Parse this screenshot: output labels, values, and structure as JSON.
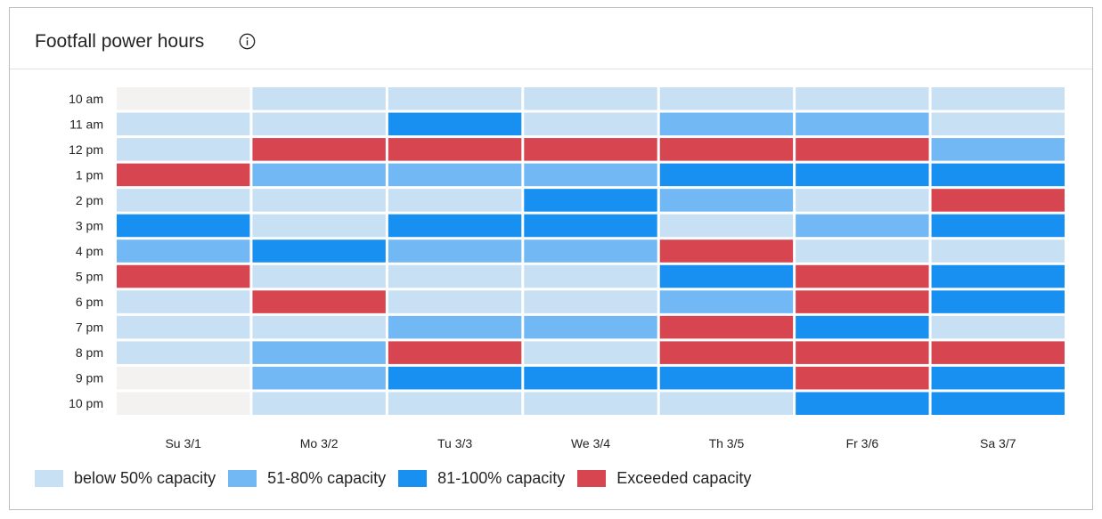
{
  "header": {
    "title": "Footfall power hours",
    "info_icon": "info-circle-icon"
  },
  "colors": {
    "below50": "#c7e0f4",
    "c51_80": "#71b8f5",
    "c81_100": "#1890f1",
    "exceeded": "#d64550",
    "none": "#f3f2f1"
  },
  "legend": [
    {
      "key": "below50",
      "label": "below 50% capacity"
    },
    {
      "key": "c51_80",
      "label": "51-80% capacity"
    },
    {
      "key": "c81_100",
      "label": "81-100% capacity"
    },
    {
      "key": "exceeded",
      "label": "Exceeded capacity"
    }
  ],
  "chart_data": {
    "type": "heatmap",
    "title": "Footfall power hours",
    "x": [
      "Su 3/1",
      "Mo 3/2",
      "Tu 3/3",
      "We 3/4",
      "Th 3/5",
      "Fr 3/6",
      "Sa 3/7"
    ],
    "y": [
      "10 am",
      "11 am",
      "12 pm",
      "1 pm",
      "2 pm",
      "3 pm",
      "4 pm",
      "5 pm",
      "6 pm",
      "7 pm",
      "8 pm",
      "9 pm",
      "10 pm"
    ],
    "categories_legend": [
      "below 50% capacity",
      "51-80% capacity",
      "81-100% capacity",
      "Exceeded capacity"
    ],
    "values": [
      [
        "none",
        "below50",
        "below50",
        "below50",
        "below50",
        "below50",
        "below50"
      ],
      [
        "below50",
        "below50",
        "c81_100",
        "below50",
        "c51_80",
        "c51_80",
        "below50"
      ],
      [
        "below50",
        "exceeded",
        "exceeded",
        "exceeded",
        "exceeded",
        "exceeded",
        "c51_80"
      ],
      [
        "exceeded",
        "c51_80",
        "c51_80",
        "c51_80",
        "c81_100",
        "c81_100",
        "c81_100"
      ],
      [
        "below50",
        "below50",
        "below50",
        "c81_100",
        "c51_80",
        "below50",
        "exceeded"
      ],
      [
        "c81_100",
        "below50",
        "c81_100",
        "c81_100",
        "below50",
        "c51_80",
        "c81_100"
      ],
      [
        "c51_80",
        "c81_100",
        "c51_80",
        "c51_80",
        "exceeded",
        "below50",
        "below50"
      ],
      [
        "exceeded",
        "below50",
        "below50",
        "below50",
        "c81_100",
        "exceeded",
        "c81_100"
      ],
      [
        "below50",
        "exceeded",
        "below50",
        "below50",
        "c51_80",
        "exceeded",
        "c81_100"
      ],
      [
        "below50",
        "below50",
        "c51_80",
        "c51_80",
        "exceeded",
        "c81_100",
        "below50"
      ],
      [
        "below50",
        "c51_80",
        "exceeded",
        "below50",
        "exceeded",
        "exceeded",
        "exceeded"
      ],
      [
        "none",
        "c51_80",
        "c81_100",
        "c81_100",
        "c81_100",
        "exceeded",
        "c81_100"
      ],
      [
        "none",
        "below50",
        "below50",
        "below50",
        "below50",
        "c81_100",
        "c81_100"
      ]
    ]
  }
}
